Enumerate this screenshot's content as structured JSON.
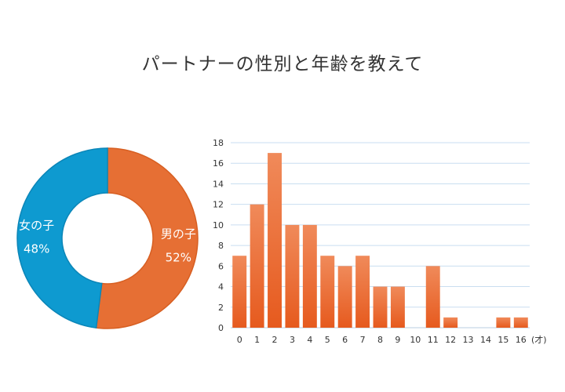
{
  "title": "パートナーの性別と年齢を教えて",
  "colors": {
    "female": "#0e9ad0",
    "male": "#e66f34",
    "bar_top": "#f08a5a",
    "bar_bottom": "#e65a1e",
    "grid": "#c9def0"
  },
  "chart_data": [
    {
      "type": "pie",
      "variant": "donut",
      "slices": [
        {
          "label": "男の子",
          "value": 52,
          "value_label": "52%"
        },
        {
          "label": "女の子",
          "value": 48,
          "value_label": "48%"
        }
      ]
    },
    {
      "type": "bar",
      "categories": [
        "0",
        "1",
        "2",
        "3",
        "4",
        "5",
        "6",
        "7",
        "8",
        "9",
        "10",
        "11",
        "12",
        "13",
        "14",
        "15",
        "16"
      ],
      "values": [
        7,
        12,
        17,
        10,
        10,
        7,
        6,
        7,
        4,
        4,
        0,
        6,
        1,
        0,
        0,
        1,
        1
      ],
      "unit_label": "(才)",
      "ylim": [
        0,
        18
      ],
      "yticks": [
        0,
        2,
        4,
        6,
        8,
        10,
        12,
        14,
        16,
        18
      ],
      "grid": true
    }
  ]
}
